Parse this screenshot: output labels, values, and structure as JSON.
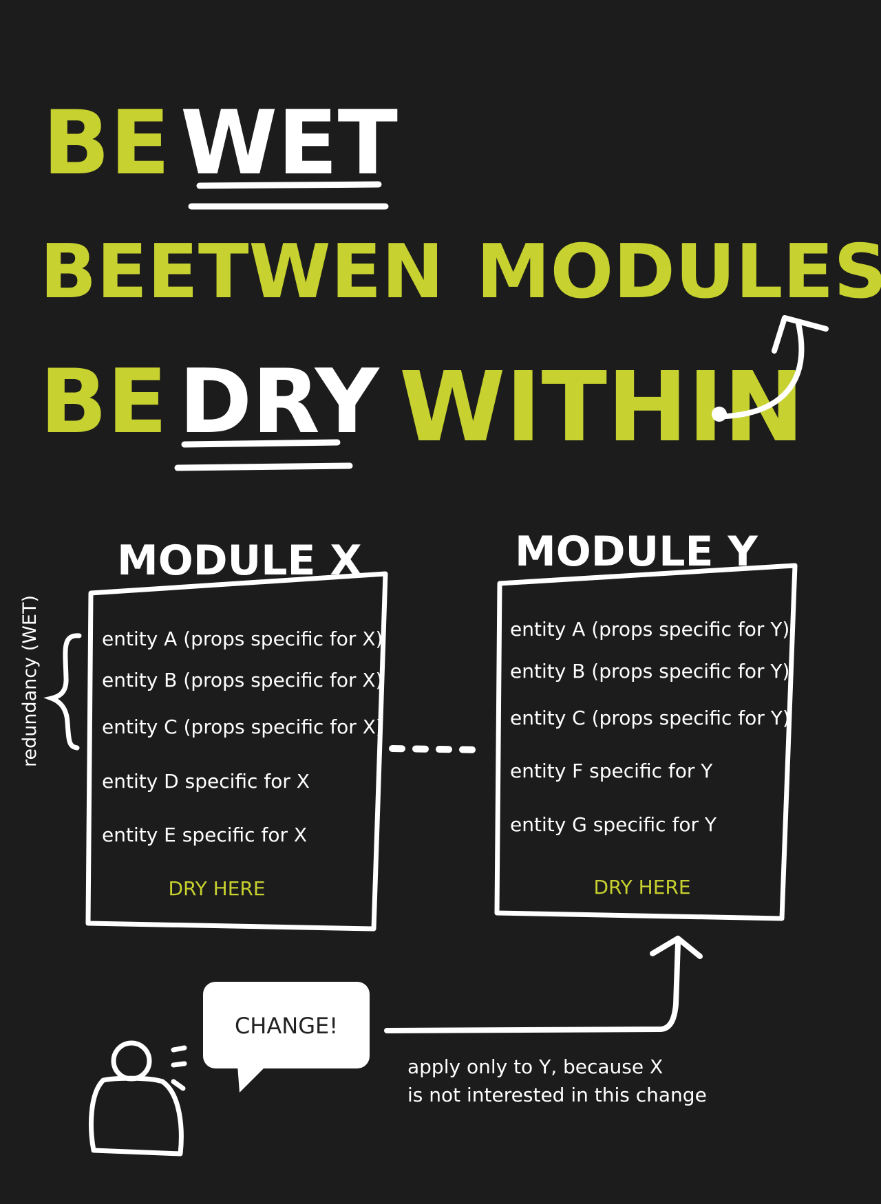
{
  "colors": {
    "background": "#1c1c1c",
    "accent": "#c7d12f",
    "ink": "#ffffff"
  },
  "heading": {
    "line1": {
      "word1": "BE",
      "word2": "WET"
    },
    "line2": {
      "word1": "BEETWEN",
      "word2": "MODULES"
    },
    "line3": {
      "word1": "BE",
      "word2": "DRY",
      "word3": "WITHIN"
    }
  },
  "modules": [
    {
      "title": "MODULE X",
      "entities": [
        "entity A (props specific for X)",
        "entity B (props specific for X)",
        "entity C (props specific for X)",
        "entity D specific for X",
        "entity E specific for X"
      ],
      "footer": "DRY HERE"
    },
    {
      "title": "MODULE Y",
      "entities": [
        "entity A (props specific for Y)",
        "entity B (props specific for Y)",
        "entity C (props specific for Y)",
        "entity F specific for Y",
        "entity G specific for Y"
      ],
      "footer": "DRY HERE"
    }
  ],
  "redundancy_label": "redundancy (WET)",
  "speech_bubble": "CHANGE!",
  "note": {
    "line1": "apply only to Y, because X",
    "line2": "is not interested in this change"
  }
}
